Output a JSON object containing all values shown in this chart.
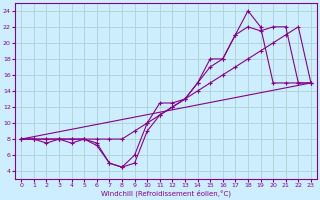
{
  "xlabel": "Windchill (Refroidissement éolien,°C)",
  "bg_color": "#cceeff",
  "grid_color": "#aacccc",
  "line_color": "#880088",
  "xlim": [
    -0.5,
    23.5
  ],
  "ylim": [
    3,
    25
  ],
  "yticks": [
    4,
    6,
    8,
    10,
    12,
    14,
    16,
    18,
    20,
    22,
    24
  ],
  "xticks": [
    0,
    1,
    2,
    3,
    4,
    5,
    6,
    7,
    8,
    9,
    10,
    11,
    12,
    13,
    14,
    15,
    16,
    17,
    18,
    19,
    20,
    21,
    22,
    23
  ],
  "line1_x": [
    0,
    1,
    2,
    3,
    4,
    5,
    6,
    7,
    8,
    9,
    10,
    11,
    12,
    13,
    14,
    15,
    16,
    17,
    18,
    19,
    20,
    21,
    22,
    23
  ],
  "line1_y": [
    8,
    8,
    8,
    8,
    8,
    8,
    7.5,
    5,
    4.5,
    6,
    10,
    12.5,
    12.5,
    13,
    15,
    18,
    18,
    21,
    24,
    22,
    15,
    15,
    15,
    15
  ],
  "line2_x": [
    0,
    1,
    2,
    3,
    4,
    5,
    6,
    7,
    8,
    9,
    10,
    11,
    12,
    13,
    14,
    15,
    16,
    17,
    18,
    19,
    20,
    21,
    22,
    23
  ],
  "line2_y": [
    8,
    8,
    7.5,
    8,
    7.5,
    8,
    7.2,
    5,
    4.5,
    5,
    9,
    11,
    12,
    13,
    15,
    17,
    18,
    21,
    22,
    21.5,
    22,
    22,
    15,
    15
  ],
  "line3_x": [
    0,
    1,
    2,
    3,
    4,
    5,
    6,
    7,
    8,
    9,
    10,
    11,
    12,
    13,
    14,
    15,
    16,
    17,
    18,
    19,
    20,
    21,
    22,
    23
  ],
  "line3_y": [
    8,
    8,
    8,
    8,
    8,
    8,
    8,
    8,
    8,
    9,
    10,
    11,
    12,
    13,
    14,
    15,
    16,
    17,
    18,
    19,
    20,
    21,
    22,
    15
  ],
  "line4_x": [
    0,
    23
  ],
  "line4_y": [
    8,
    15
  ]
}
